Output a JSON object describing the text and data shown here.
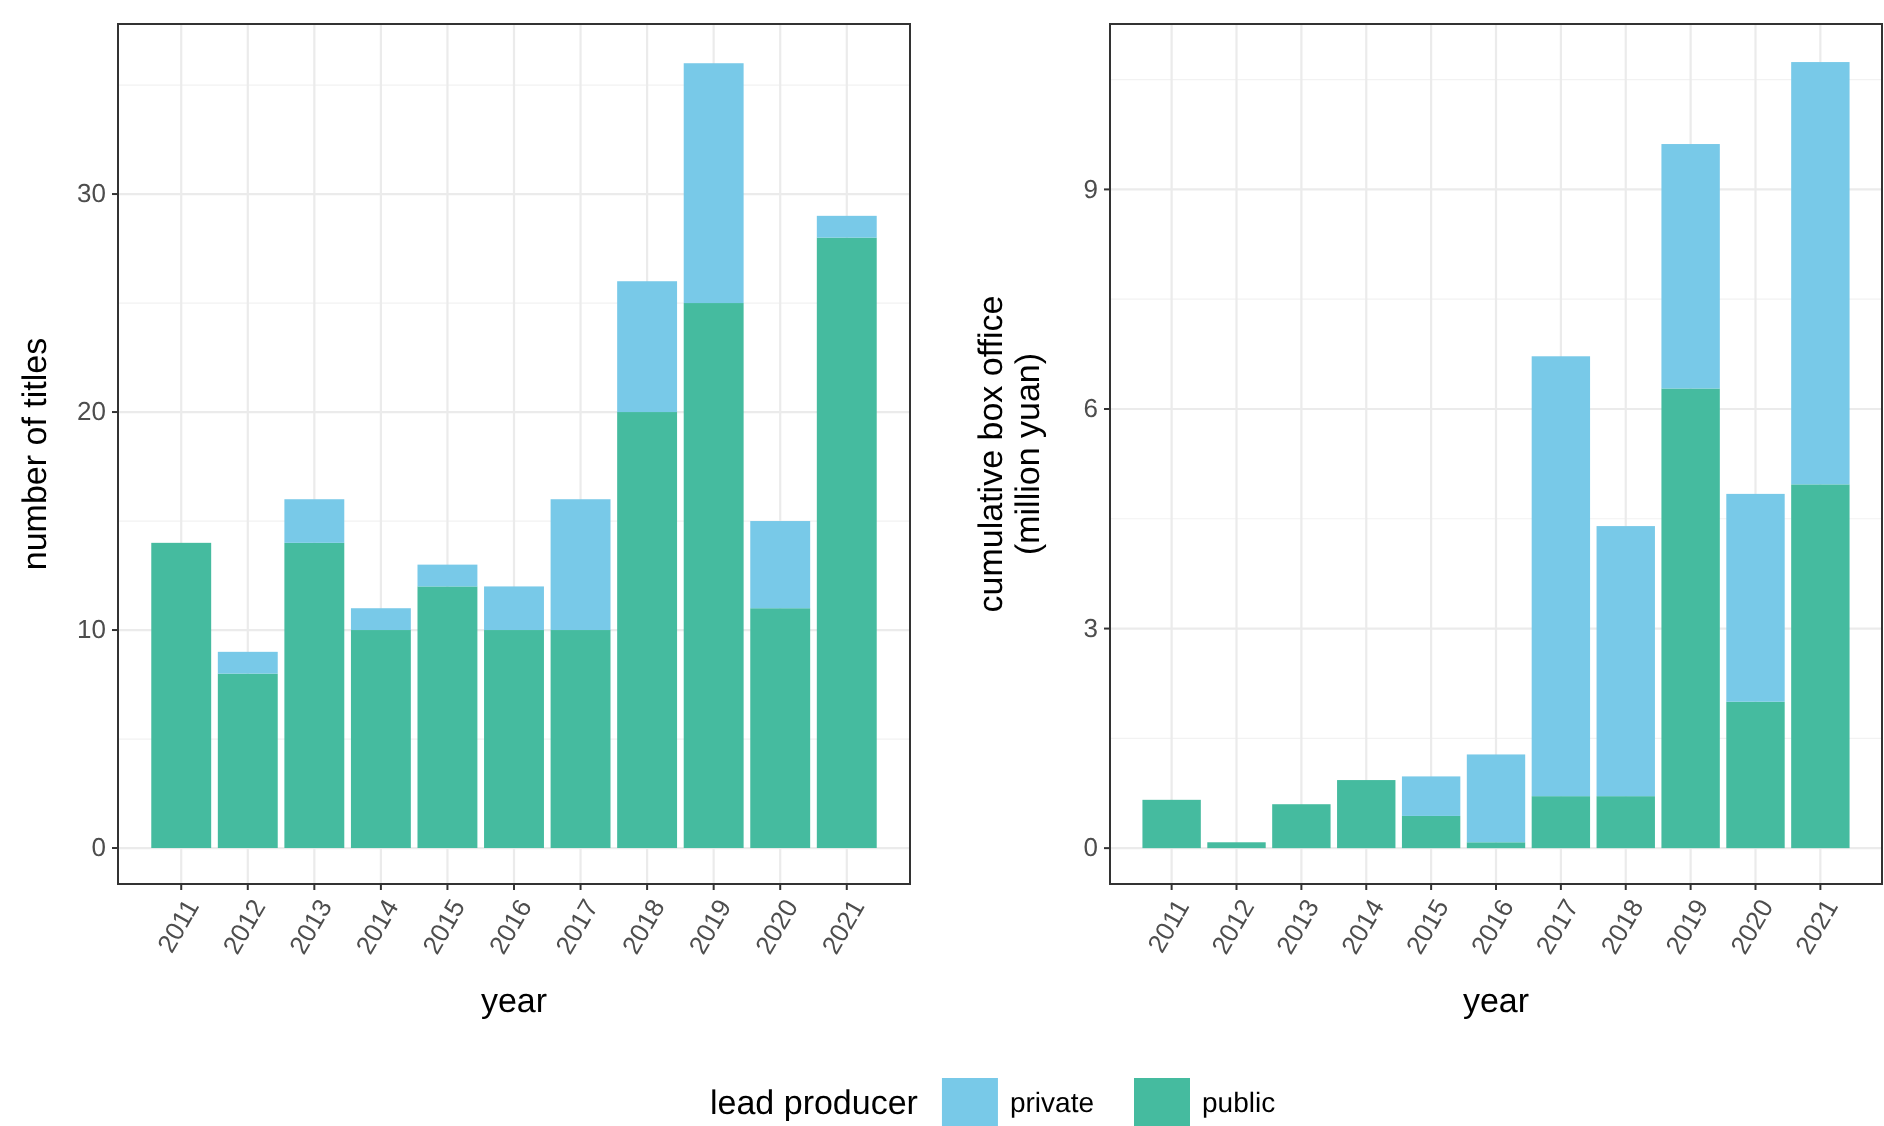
{
  "chart_data": [
    {
      "type": "bar",
      "stacked": true,
      "xlabel": "year",
      "ylabel": "number of titles",
      "legend_title": "lead producer",
      "legend": "bottom",
      "grid": true,
      "categories": [
        "2011",
        "2012",
        "2013",
        "2014",
        "2015",
        "2016",
        "2017",
        "2018",
        "2019",
        "2020",
        "2021"
      ],
      "ylim": [
        -1.65,
        37.8
      ],
      "yticks": [
        0,
        10,
        20,
        30
      ],
      "series": [
        {
          "name": "public",
          "color": "#45bb9f",
          "values": [
            14,
            8,
            14,
            10,
            12,
            10,
            10,
            20,
            25,
            11,
            28
          ]
        },
        {
          "name": "private",
          "color": "#78c9e8",
          "values": [
            0,
            1,
            2,
            1,
            1,
            2,
            6,
            6,
            11,
            4,
            1
          ]
        }
      ]
    },
    {
      "type": "bar",
      "stacked": true,
      "xlabel": "year",
      "ylabel": "cumulative box office\n(million yuan)",
      "grid": true,
      "categories": [
        "2011",
        "2012",
        "2013",
        "2014",
        "2015",
        "2016",
        "2017",
        "2018",
        "2019",
        "2020",
        "2021"
      ],
      "ylim": [
        -0.49,
        11.26
      ],
      "yticks": [
        0,
        3,
        6,
        9
      ],
      "series": [
        {
          "color": "#45bb9f",
          "values": [
            0.66,
            0.08,
            0.6,
            0.93,
            0.44,
            0.08,
            0.71,
            0.71,
            6.28,
            2.0,
            4.97
          ]
        },
        {
          "color": "#78c9e8",
          "values": [
            0,
            0,
            0,
            0,
            0.54,
            1.2,
            6.01,
            3.69,
            3.34,
            2.84,
            5.77
          ]
        }
      ]
    }
  ]
}
